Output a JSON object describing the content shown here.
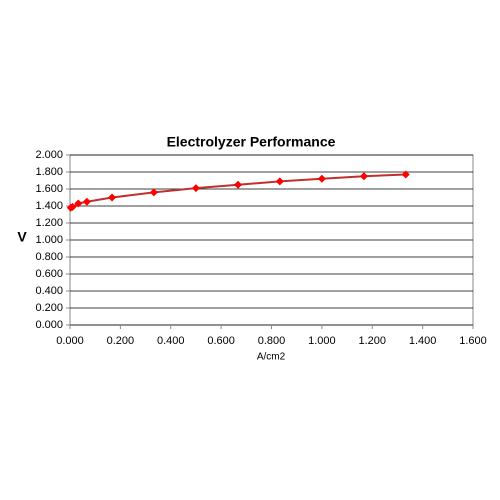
{
  "chart_data": {
    "type": "line",
    "title": "Electrolyzer Performance",
    "x_label": "A/cm2",
    "y_label": "V",
    "x": [
      0.003,
      0.01,
      0.033,
      0.067,
      0.167,
      0.333,
      0.5,
      0.667,
      0.833,
      1.0,
      1.167,
      1.333
    ],
    "values": [
      1.38,
      1.39,
      1.43,
      1.45,
      1.5,
      1.56,
      1.61,
      1.65,
      1.69,
      1.72,
      1.75,
      1.77
    ],
    "color": "#c0302f",
    "marker_color": "#ff0000",
    "marker": "diamond",
    "xlim": [
      0,
      1.6
    ],
    "ylim": [
      0,
      2
    ],
    "xticks": [
      {
        "value": 0,
        "label": "0.000"
      },
      {
        "value": 0.2,
        "label": "0.200"
      },
      {
        "value": 0.4,
        "label": "0.400"
      },
      {
        "value": 0.6,
        "label": "0.600"
      },
      {
        "value": 0.8,
        "label": "0.800"
      },
      {
        "value": 1,
        "label": "1.000"
      },
      {
        "value": 1.2,
        "label": "1.200"
      },
      {
        "value": 1.4,
        "label": "1.400"
      },
      {
        "value": 1.6,
        "label": "1.600"
      }
    ],
    "yticks": [
      {
        "value": 0,
        "label": "0.000"
      },
      {
        "value": 0.2,
        "label": "0.200"
      },
      {
        "value": 0.4,
        "label": "0.400"
      },
      {
        "value": 0.6,
        "label": "0.600"
      },
      {
        "value": 0.8,
        "label": "0.800"
      },
      {
        "value": 1,
        "label": "1.000"
      },
      {
        "value": 1.2,
        "label": "1.200"
      },
      {
        "value": 1.4,
        "label": "1.400"
      },
      {
        "value": 1.6,
        "label": "1.600"
      },
      {
        "value": 1.8,
        "label": "1.800"
      },
      {
        "value": 2,
        "label": "2.000"
      }
    ],
    "grid": "y"
  }
}
